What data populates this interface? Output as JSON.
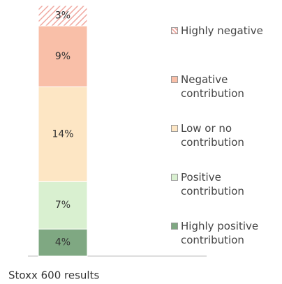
{
  "chart_data": {
    "type": "stacked_bar",
    "categories": [
      "Stoxx 600 results"
    ],
    "series": [
      {
        "name": "Highly positive contribution",
        "color": "#7fa882",
        "values": [
          4
        ],
        "value_labels": [
          "4%"
        ]
      },
      {
        "name": "Positive contribution",
        "color": "#d9f0d0",
        "values": [
          7
        ],
        "value_labels": [
          "7%"
        ]
      },
      {
        "name": "Low or no contribution",
        "color": "#fde6c4",
        "values": [
          14
        ],
        "value_labels": [
          "14%"
        ]
      },
      {
        "name": "Negative contribution",
        "color": "#f9bfa8",
        "values": [
          9
        ],
        "value_labels": [
          "9%"
        ]
      },
      {
        "name": "Highly negative",
        "color": "#f0a8a0",
        "hatch": true,
        "values": [
          3
        ],
        "value_labels": [
          "3%"
        ]
      }
    ],
    "legend": "right"
  }
}
